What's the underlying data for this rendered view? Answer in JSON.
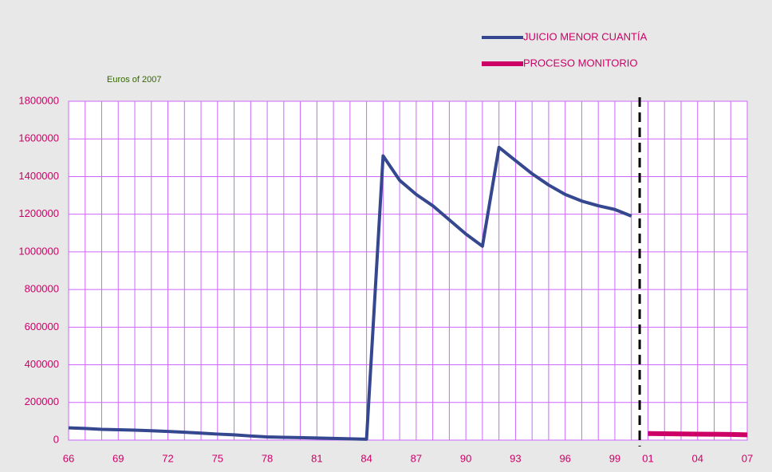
{
  "chart_data": {
    "type": "line",
    "subtitle": "Euros of 2007",
    "categories": [
      "66",
      null,
      null,
      "69",
      null,
      null,
      "72",
      null,
      null,
      "75",
      null,
      null,
      "78",
      null,
      null,
      "81",
      null,
      null,
      "84",
      null,
      null,
      "87",
      null,
      null,
      "90",
      null,
      null,
      "93",
      null,
      null,
      "96",
      null,
      null,
      "99",
      null,
      "01",
      null,
      null,
      "04",
      null,
      null,
      "07"
    ],
    "series": [
      {
        "name": "JUICIO MENOR CUANTÍA",
        "color": "#34478f",
        "values": [
          65000,
          62000,
          57000,
          55000,
          53000,
          50000,
          46000,
          42000,
          37000,
          32000,
          28000,
          22000,
          17000,
          15000,
          13000,
          11000,
          9000,
          7000,
          5000,
          1510000,
          1380000,
          1305000,
          1245000,
          1170000,
          1095000,
          1030000,
          1555000,
          1485000,
          1415000,
          1355000,
          1305000,
          1270000,
          1245000,
          1225000,
          1190000,
          null,
          null,
          null,
          null,
          null,
          null,
          null
        ]
      },
      {
        "name": "PROCESO MONITORIO",
        "color": "#cc0066",
        "values": [
          null,
          null,
          null,
          null,
          null,
          null,
          null,
          null,
          null,
          null,
          null,
          null,
          null,
          null,
          null,
          null,
          null,
          null,
          null,
          null,
          null,
          null,
          null,
          null,
          null,
          null,
          null,
          null,
          null,
          null,
          null,
          null,
          null,
          null,
          null,
          35000,
          34000,
          33000,
          32000,
          31000,
          30000,
          28000
        ]
      }
    ],
    "ylim": [
      0,
      1800000
    ],
    "yticks": [
      0,
      200000,
      400000,
      600000,
      800000,
      1000000,
      1200000,
      1400000,
      1600000,
      1800000
    ],
    "grid": true,
    "grid_color": "#cc66ff",
    "tick_color": "#cc0066",
    "legend": "upper right"
  }
}
